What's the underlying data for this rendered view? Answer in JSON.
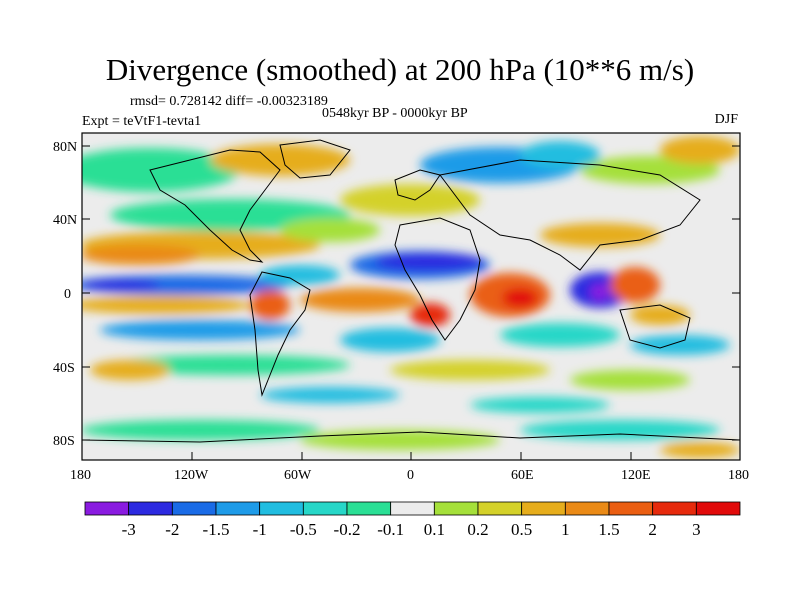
{
  "title": "Divergence (smoothed) at 200 hPa (10**6 m/s)",
  "stats": "rmsd= 0.728142 diff= -0.00323189",
  "period": "0548kyr BP - 0000kyr BP",
  "experiment": "Expt = teVtF1-tevta1",
  "season": "DJF",
  "lat_ticks": [
    "80N",
    "40N",
    "0",
    "40S",
    "80S"
  ],
  "lon_ticks": [
    "180",
    "120W",
    "60W",
    "0",
    "60E",
    "120E",
    "180"
  ],
  "colorbar": {
    "labels": [
      "-3",
      "-2",
      "-1.5",
      "-1",
      "-0.5",
      "-0.2",
      "-0.1",
      "0.1",
      "0.2",
      "0.5",
      "1",
      "1.5",
      "2",
      "3"
    ],
    "colors": [
      "#8a1be0",
      "#2c2ae0",
      "#1a6be6",
      "#1e9be8",
      "#21bde0",
      "#27d7c8",
      "#2bdf95",
      "#ececec",
      "#a5e03a",
      "#d4d12a",
      "#e6ad1c",
      "#ea8a16",
      "#ea5e12",
      "#e62a0c",
      "#e10a0a"
    ]
  }
}
